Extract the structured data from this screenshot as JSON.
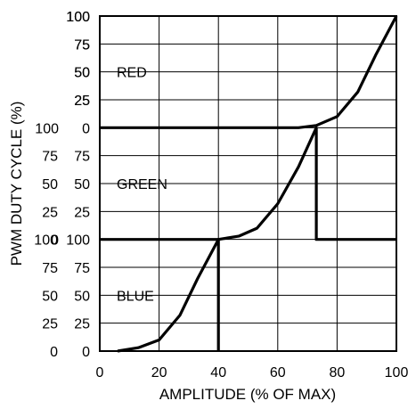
{
  "chart_data": {
    "type": "line",
    "title": "",
    "xlabel": "AMPLITUDE (% OF MAX)",
    "ylabel": "PWM DUTY CYCLE (%)",
    "xlim": [
      0,
      100
    ],
    "x_ticks": [
      "0",
      "20",
      "40",
      "60",
      "80",
      "100"
    ],
    "bands": [
      {
        "name": "RED",
        "label": "RED",
        "ylim": [
          0,
          100
        ],
        "y_ticks_left": [
          "100",
          "75",
          "50",
          "25"
        ],
        "y_ticks_right": [
          "100",
          "75",
          "50",
          "25",
          "0"
        ],
        "points": [
          [
            0,
            0
          ],
          [
            67,
            0
          ],
          [
            73,
            2
          ],
          [
            80,
            10
          ],
          [
            87,
            32
          ],
          [
            93,
            65
          ],
          [
            100,
            100
          ]
        ]
      },
      {
        "name": "GREEN",
        "label": "GREEN",
        "ylim": [
          0,
          100
        ],
        "y_ticks_left": [
          "100",
          "75",
          "50",
          "25",
          "0"
        ],
        "y_ticks_right": [
          "75",
          "50",
          "25"
        ],
        "points": [
          [
            0,
            0
          ],
          [
            40,
            0
          ],
          [
            47,
            3
          ],
          [
            53,
            10
          ],
          [
            60,
            32
          ],
          [
            67,
            65
          ],
          [
            73,
            100
          ],
          [
            73,
            0
          ],
          [
            100,
            0
          ]
        ]
      },
      {
        "name": "BLUE",
        "label": "BLUE",
        "ylim": [
          0,
          100
        ],
        "y_ticks_left": [
          "100",
          "75",
          "50",
          "25",
          "0"
        ],
        "y_ticks_right": [
          "100",
          "75",
          "50",
          "25",
          "0"
        ],
        "points": [
          [
            6,
            0
          ],
          [
            13,
            3
          ],
          [
            20,
            10
          ],
          [
            27,
            32
          ],
          [
            33,
            65
          ],
          [
            40,
            100
          ],
          [
            40,
            0
          ]
        ]
      }
    ],
    "grid": true,
    "legend": "none"
  }
}
